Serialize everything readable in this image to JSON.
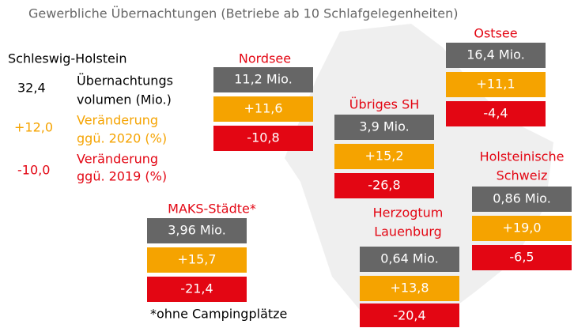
{
  "title": "Gewerbliche Übernachtungen (Betriebe ab 10 Schlafgelegenheiten)",
  "legend": {
    "heading": "Schleswig-Holstein",
    "rows": [
      {
        "value": "32,4",
        "label": [
          "Übernachtungs",
          "volumen (Mio.)"
        ]
      },
      {
        "value": "+12,0",
        "label": [
          "Veränderung",
          "ggü. 2020 (%)"
        ]
      },
      {
        "value": "-10,0",
        "label": [
          "Veränderung",
          "ggü. 2019 (%)"
        ]
      }
    ]
  },
  "regions": [
    {
      "name": [
        "Nordsee"
      ],
      "volume": "11,2 Mio.",
      "change_2020": "+11,6",
      "change_2019": "-10,8"
    },
    {
      "name": [
        "Ostsee"
      ],
      "volume": "16,4 Mio.",
      "change_2020": "+11,1",
      "change_2019": "-4,4"
    },
    {
      "name": [
        "Übriges SH"
      ],
      "volume": "3,9 Mio.",
      "change_2020": "+15,2",
      "change_2019": "-26,8"
    },
    {
      "name": [
        "Holsteinische",
        "Schweiz"
      ],
      "volume": "0,86 Mio.",
      "change_2020": "+19,0",
      "change_2019": "-6,5"
    },
    {
      "name": [
        "MAKS-Städte*"
      ],
      "volume": "3,96 Mio.",
      "change_2020": "+15,7",
      "change_2019": "-21,4"
    },
    {
      "name": [
        "Herzogtum",
        "Lauenburg"
      ],
      "volume": "0,64 Mio.",
      "change_2020": "+13,8",
      "change_2019": "-20,4"
    }
  ],
  "footnote": "*ohne Campingplätze"
}
